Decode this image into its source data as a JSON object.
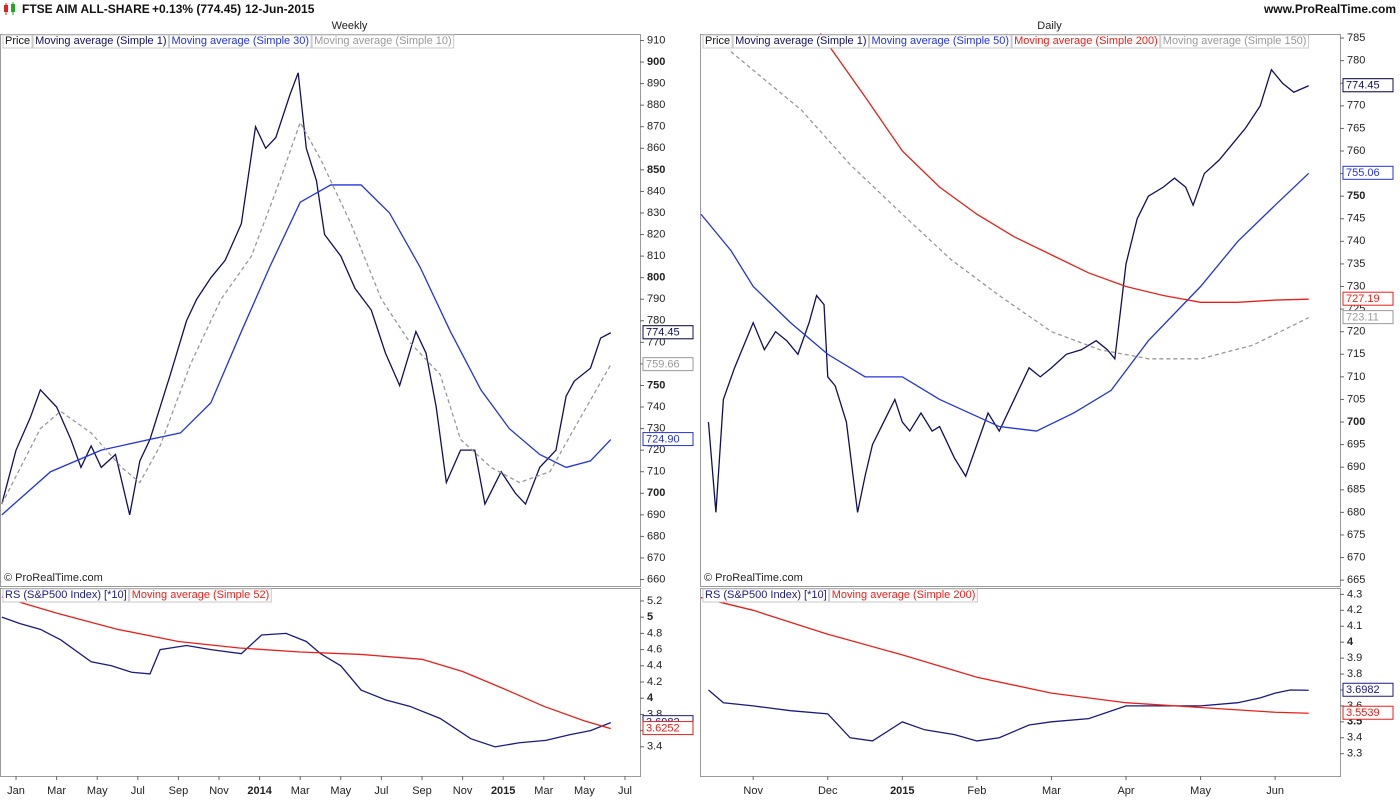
{
  "header": {
    "title": "FTSE AIM ALL-SHARE",
    "change": "+0.13% (774.45)",
    "date": "12-Jun-2015",
    "site": "www.ProRealTime.com"
  },
  "chart_data": [
    {
      "type": "line",
      "title": "Weekly",
      "legend_extra": "Price",
      "credit": "© ProRealTime.com",
      "xlim": [
        -0.74,
        30.74
      ],
      "ylim": [
        657,
        913
      ],
      "yticks": [
        660,
        670,
        680,
        690,
        700,
        710,
        720,
        730,
        740,
        750,
        760,
        770,
        780,
        790,
        800,
        810,
        820,
        830,
        840,
        850,
        860,
        870,
        880,
        890,
        900,
        910
      ],
      "series": [
        {
          "name": "Moving average (Simple 1)",
          "color": "#10105a",
          "x": [
            -0.7,
            0,
            0.7,
            1.2,
            2,
            2.7,
            3.2,
            3.7,
            4.2,
            4.9,
            5.6,
            6.1,
            6.6,
            7.1,
            7.6,
            8.4,
            8.9,
            9.6,
            10.3,
            11.1,
            11.8,
            12.3,
            12.8,
            13.5,
            13.9,
            14.3,
            14.8,
            15.2,
            16,
            16.7,
            17.5,
            18.2,
            18.9,
            19.7,
            20.2,
            20.7,
            21.2,
            21.9,
            22.6,
            23.1,
            23.9,
            24.6,
            25.1,
            25.8,
            26.6,
            27.1,
            27.5,
            28.3,
            28.8,
            29.3
          ],
          "values": [
            695,
            720,
            735,
            748,
            740,
            725,
            712,
            722,
            712,
            718,
            690,
            715,
            725,
            740,
            755,
            780,
            790,
            800,
            808,
            825,
            870,
            860,
            865,
            885,
            895,
            860,
            845,
            820,
            810,
            795,
            785,
            765,
            750,
            775,
            765,
            740,
            705,
            720,
            720,
            695,
            710,
            700,
            695,
            712,
            720,
            745,
            752,
            758,
            772,
            774.45
          ]
        },
        {
          "name": "Moving average (Simple 30)",
          "color": "#2233dd",
          "x": [
            -0.7,
            1.7,
            4.2,
            6.6,
            8.1,
            9.6,
            11.1,
            12.5,
            14,
            15.5,
            17,
            18.4,
            19.9,
            21.4,
            22.9,
            24.3,
            25.8,
            27.1,
            28.3,
            29.3
          ],
          "values": [
            690,
            710,
            720,
            725,
            728,
            742,
            775,
            805,
            835,
            843,
            843,
            830,
            805,
            775,
            748,
            730,
            718,
            712,
            715,
            724.9
          ]
        },
        {
          "name": "Moving average (Simple 10)",
          "color": "#999999",
          "dashed": true,
          "x": [
            -0.7,
            1.2,
            2.2,
            3.7,
            5.2,
            6.1,
            7.1,
            8.6,
            10.1,
            11.6,
            13,
            14,
            15,
            16.5,
            18,
            19.4,
            20.9,
            21.9,
            23.4,
            24.8,
            26.3,
            27.8,
            29.3
          ],
          "values": [
            695,
            730,
            738,
            728,
            712,
            705,
            722,
            760,
            790,
            810,
            845,
            872,
            855,
            825,
            790,
            770,
            755,
            725,
            712,
            705,
            710,
            735,
            759.66
          ]
        }
      ],
      "tags": {
        "values": [
          774.45,
          774.45,
          759.66,
          724.9
        ],
        "value_labels": [
          "774.45",
          "774.45",
          "759.66",
          "724.90"
        ],
        "colors": [
          "#7a5a00",
          "#10105a",
          "#999999",
          "#2233dd"
        ],
        "fills": [
          "#f5c518",
          "#ffffff",
          "#ffffff",
          "#ffffff"
        ]
      }
    },
    {
      "type": "line",
      "xlim": [
        -0.74,
        30.74
      ],
      "ylim": [
        3.04,
        5.36
      ],
      "yticks": [
        3.4,
        3.6,
        3.8,
        4,
        4.2,
        4.4,
        4.6,
        4.8,
        5,
        5.2
      ],
      "xticks": [
        {
          "value": 0,
          "label": "Jan"
        },
        {
          "value": 2,
          "label": "Mar"
        },
        {
          "value": 4,
          "label": "May"
        },
        {
          "value": 6,
          "label": "Jul"
        },
        {
          "value": 8,
          "label": "Sep"
        },
        {
          "value": 10,
          "label": "Nov"
        },
        {
          "value": 12,
          "label": "2014"
        },
        {
          "value": 14,
          "label": "Mar"
        },
        {
          "value": 16,
          "label": "May"
        },
        {
          "value": 18,
          "label": "Jul"
        },
        {
          "value": 20,
          "label": "Sep"
        },
        {
          "value": 22,
          "label": "Nov"
        },
        {
          "value": 24,
          "label": "2015"
        },
        {
          "value": 26,
          "label": "Mar"
        },
        {
          "value": 28,
          "label": "May"
        },
        {
          "value": 30,
          "label": "Jul"
        }
      ],
      "series": [
        {
          "name": "RS (S&P500 Index) [*10]",
          "color": "#1a1a80",
          "x": [
            -0.7,
            0.2,
            1.2,
            2.2,
            3.7,
            4.7,
            5.7,
            6.6,
            7.1,
            8.4,
            9.6,
            11.1,
            12.1,
            13.3,
            14.3,
            15,
            16,
            17,
            18.2,
            19.4,
            20.9,
            22.4,
            23.6,
            24.8,
            26.1,
            27.3,
            28.3,
            29.3
          ],
          "values": [
            5,
            4.92,
            4.85,
            4.72,
            4.45,
            4.4,
            4.32,
            4.3,
            4.6,
            4.65,
            4.6,
            4.55,
            4.78,
            4.8,
            4.7,
            4.55,
            4.4,
            4.1,
            3.98,
            3.9,
            3.75,
            3.5,
            3.4,
            3.45,
            3.48,
            3.55,
            3.6,
            3.6982
          ]
        },
        {
          "name": "Moving average (Simple 52)",
          "color": "#e8201a",
          "x": [
            -0.7,
            2,
            5,
            8,
            11,
            14,
            17,
            20,
            22,
            24,
            26,
            28,
            29.3
          ],
          "values": [
            5.25,
            5.05,
            4.85,
            4.7,
            4.62,
            4.57,
            4.54,
            4.48,
            4.33,
            4.12,
            3.9,
            3.72,
            3.6252
          ]
        }
      ],
      "tags": {
        "values": [
          3.6982,
          3.6252
        ],
        "value_labels": [
          "3.6982",
          "3.6252"
        ],
        "colors": [
          "#1a1a80",
          "#e8201a"
        ],
        "fills": [
          "#ffffff",
          "#ffffff"
        ]
      }
    },
    {
      "type": "line",
      "title": "Daily",
      "legend_extra": "Price",
      "credit": "© ProRealTime.com",
      "xlim": [
        -0.7,
        7.87
      ],
      "ylim": [
        663.7,
        785.9
      ],
      "yticks": [
        665,
        670,
        675,
        680,
        685,
        690,
        695,
        700,
        705,
        710,
        715,
        720,
        725,
        730,
        735,
        740,
        745,
        750,
        755,
        760,
        765,
        770,
        775,
        780,
        785
      ],
      "series": [
        {
          "name": "Moving average (Simple 1)",
          "color": "#10105a",
          "x": [
            -0.6,
            -0.5,
            -0.4,
            -0.25,
            -0.1,
            0,
            0.15,
            0.3,
            0.45,
            0.6,
            0.75,
            0.85,
            0.95,
            1.0,
            1.1,
            1.25,
            1.4,
            1.5,
            1.6,
            1.75,
            1.9,
            2.0,
            2.1,
            2.25,
            2.4,
            2.5,
            2.7,
            2.85,
            3.0,
            3.15,
            3.3,
            3.5,
            3.7,
            3.85,
            4.0,
            4.2,
            4.4,
            4.6,
            4.75,
            4.85,
            5.0,
            5.15,
            5.3,
            5.5,
            5.65,
            5.8,
            5.9,
            6.05,
            6.25,
            6.45,
            6.6,
            6.8,
            6.95,
            7.1,
            7.25,
            7.45
          ],
          "values": [
            700,
            680,
            705,
            712,
            718,
            722,
            716,
            720,
            718,
            715,
            722,
            728,
            726,
            710,
            708,
            700,
            680,
            688,
            695,
            700,
            705,
            700,
            698,
            702,
            698,
            699,
            692,
            688,
            695,
            702,
            698,
            705,
            712,
            710,
            712,
            715,
            716,
            718,
            716,
            714,
            735,
            745,
            750,
            752,
            754,
            752,
            748,
            755,
            758,
            762,
            765,
            770,
            778,
            775,
            773,
            774.45
          ]
        },
        {
          "name": "Moving average (Simple 50)",
          "color": "#2233dd",
          "x": [
            -0.7,
            -0.3,
            0,
            0.5,
            1,
            1.5,
            2,
            2.5,
            3.3,
            3.8,
            4.3,
            4.8,
            5.3,
            6,
            6.5,
            7,
            7.45
          ],
          "values": [
            746,
            738,
            730,
            722,
            715,
            710,
            710,
            705,
            699,
            698,
            702,
            707,
            718,
            730,
            740,
            748,
            755.06
          ]
        },
        {
          "name": "Moving average (Simple 200)",
          "color": "#e8201a",
          "x": [
            0.9,
            1.5,
            2,
            2.5,
            3,
            3.5,
            4,
            4.5,
            5,
            5.5,
            6,
            6.5,
            7,
            7.45
          ],
          "values": [
            786,
            772,
            760,
            752,
            746,
            741,
            737,
            733,
            730,
            728,
            726.5,
            726.5,
            727,
            727.19
          ]
        },
        {
          "name": "Moving average (Simple 150)",
          "color": "#999999",
          "dashed": true,
          "x": [
            -0.3,
            0.65,
            1.3,
            2,
            2.65,
            3.3,
            4,
            4.65,
            5.3,
            6,
            6.7,
            7.45
          ],
          "values": [
            782,
            769,
            757,
            746,
            736,
            728,
            720,
            716,
            714,
            714,
            717,
            723.11
          ]
        }
      ],
      "tags": {
        "values": [
          774.45,
          774.45,
          755.06,
          727.19,
          723.11
        ],
        "value_labels": [
          "774.45",
          "774.45",
          "755.06",
          "727.19",
          "723.11"
        ],
        "colors": [
          "#7a5a00",
          "#10105a",
          "#2233dd",
          "#e8201a",
          "#999999"
        ],
        "fills": [
          "#f5c518",
          "#ffffff",
          "#ffffff",
          "#ffffff",
          "#ffffff"
        ]
      }
    },
    {
      "type": "line",
      "xlim": [
        -0.7,
        7.87
      ],
      "ylim": [
        3.16,
        4.34
      ],
      "yticks": [
        3.3,
        3.4,
        3.5,
        3.6,
        3.7,
        3.8,
        3.9,
        4,
        4.1,
        4.2,
        4.3
      ],
      "xticks": [
        {
          "value": 0,
          "label": "Nov"
        },
        {
          "value": 1,
          "label": "Dec"
        },
        {
          "value": 2,
          "label": "2015"
        },
        {
          "value": 3,
          "label": "Feb"
        },
        {
          "value": 4,
          "label": "Mar"
        },
        {
          "value": 5,
          "label": "Apr"
        },
        {
          "value": 6,
          "label": "May"
        },
        {
          "value": 7,
          "label": "Jun"
        }
      ],
      "series": [
        {
          "name": "RS (S&P500 Index) [*10]",
          "color": "#1a1a80",
          "x": [
            -0.6,
            -0.4,
            0,
            0.5,
            1,
            1.3,
            1.6,
            2,
            2.3,
            2.7,
            3,
            3.3,
            3.7,
            4,
            4.5,
            5,
            5.5,
            6,
            6.5,
            6.8,
            7,
            7.2,
            7.45
          ],
          "values": [
            3.7,
            3.62,
            3.6,
            3.57,
            3.55,
            3.4,
            3.38,
            3.5,
            3.45,
            3.42,
            3.38,
            3.4,
            3.48,
            3.5,
            3.52,
            3.6,
            3.6,
            3.6,
            3.62,
            3.65,
            3.68,
            3.7,
            3.6982
          ]
        },
        {
          "name": "Moving average (Simple 200)",
          "color": "#e8201a",
          "x": [
            -0.7,
            0,
            1,
            2,
            3,
            4,
            5,
            6,
            7,
            7.45
          ],
          "values": [
            4.28,
            4.2,
            4.05,
            3.92,
            3.78,
            3.68,
            3.62,
            3.59,
            3.56,
            3.5539
          ]
        }
      ],
      "tags": {
        "values": [
          3.6982,
          3.5539
        ],
        "value_labels": [
          "3.6982",
          "3.5539"
        ],
        "colors": [
          "#1a1a80",
          "#e8201a"
        ],
        "fills": [
          "#ffffff",
          "#ffffff"
        ]
      }
    }
  ]
}
